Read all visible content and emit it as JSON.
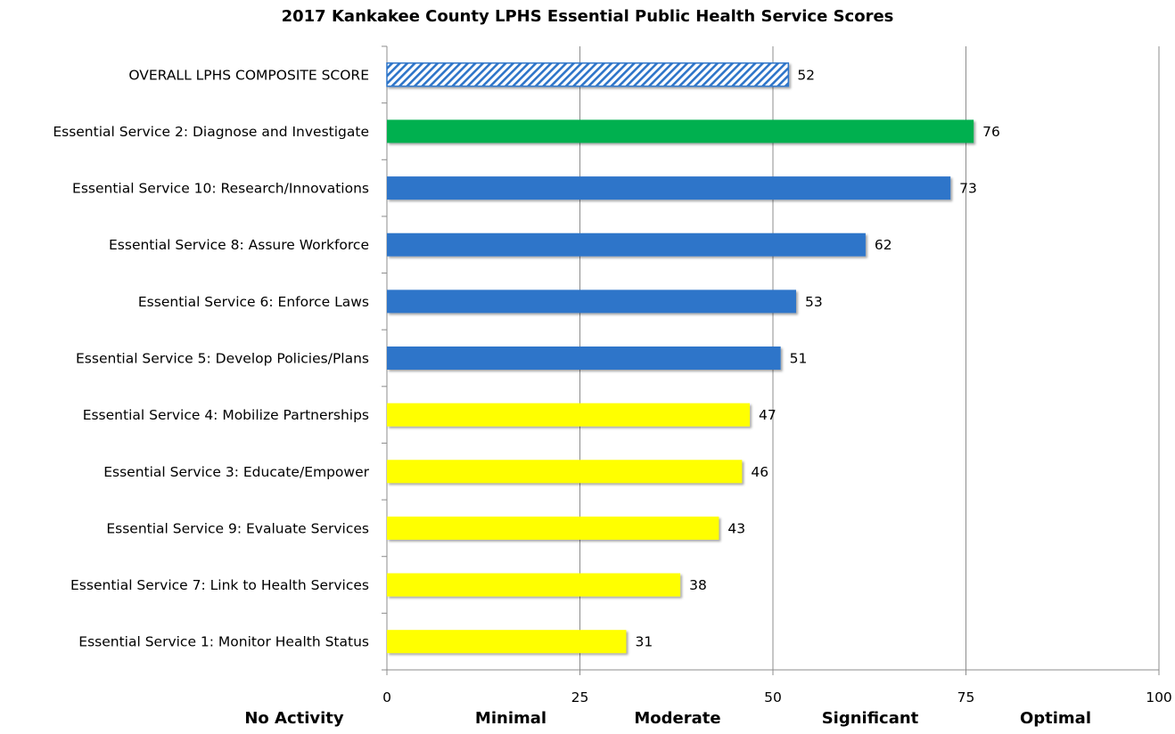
{
  "chart_data": {
    "type": "bar",
    "orientation": "horizontal",
    "title": "2017 Kankakee County LPHS Essential Public Health Service Scores",
    "xlim": [
      0,
      100
    ],
    "x_ticks": [
      "0",
      "25",
      "50",
      "75",
      "100"
    ],
    "grid": "vertical",
    "categories": [
      "OVERALL LPHS COMPOSITE SCORE",
      "Essential Service 2: Diagnose and Investigate",
      "Essential Service 10: Research/Innovations",
      "Essential Service 8: Assure Workforce",
      "Essential Service 6: Enforce Laws",
      "Essential Service 5: Develop Policies/Plans",
      "Essential Service 4: Mobilize Partnerships",
      "Essential Service 3: Educate/Empower",
      "Essential Service 9: Evaluate Services",
      "Essential Service 7: Link to Health Services",
      "Essential Service 1: Monitor Health Status"
    ],
    "values": [
      52,
      76,
      73,
      62,
      53,
      51,
      47,
      46,
      43,
      38,
      31
    ],
    "bar_colors": [
      "hatched-blue",
      "#00B050",
      "#2E75C9",
      "#2E75C9",
      "#2E75C9",
      "#2E75C9",
      "#FFFF00",
      "#FFFF00",
      "#FFFF00",
      "#FFFF00",
      "#FFFF00"
    ],
    "band_labels": [
      "No Activity",
      "Minimal",
      "Moderate",
      "Significant",
      "Optimal"
    ]
  },
  "colors": {
    "hatch": "#2E75C9",
    "grid": "#8C8C8C",
    "axis": "#8C8C8C"
  }
}
